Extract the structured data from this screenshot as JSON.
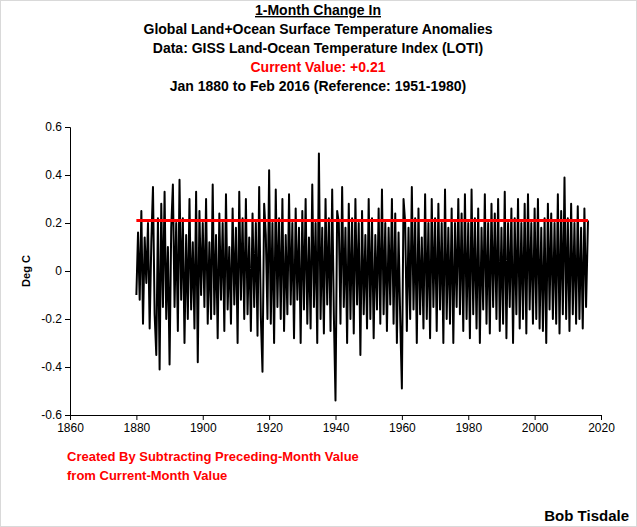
{
  "chart_data": {
    "type": "line",
    "title": "1-Month Change In",
    "subtitle": [
      "Global Land+Ocean Surface Temperature Anomalies",
      "Data: GISS Land-Ocean Temperature Index (LOTI)",
      {
        "text": "Current Value: +0.21",
        "color": "#ff0000"
      },
      "Jan 1880 to Feb 2016 (Reference: 1951-1980)"
    ],
    "y_label": "Deg C",
    "annotations": [
      {
        "text": "Created By Subtracting Preceding-Month Value",
        "color": "#ff0000"
      },
      {
        "text": "from Current-Month Value",
        "color": "#ff0000"
      },
      {
        "text": "Bob Tisdale",
        "color": "#000000"
      }
    ],
    "color": "#000000",
    "reference_line": {
      "value": 0.21,
      "color": "#ff0000"
    },
    "xlim": [
      1860,
      2020
    ],
    "xticks": [
      1860,
      1880,
      1900,
      1920,
      1940,
      1960,
      1980,
      2000,
      2020
    ],
    "ylim": [
      -0.6,
      0.6
    ],
    "yticks": [
      -0.6,
      -0.4,
      -0.2,
      0,
      0.2,
      0.4,
      0.6
    ],
    "grid": false,
    "x": [
      1880,
      1880.5,
      1881,
      1881.5,
      1882,
      1882.5,
      1883,
      1883.5,
      1884,
      1884.5,
      1885,
      1885.5,
      1886,
      1886.5,
      1887,
      1887.5,
      1888,
      1888.5,
      1889,
      1889.5,
      1890,
      1890.5,
      1891,
      1891.5,
      1892,
      1892.5,
      1893,
      1893.5,
      1894,
      1894.5,
      1895,
      1895.5,
      1896,
      1896.5,
      1897,
      1897.5,
      1898,
      1898.5,
      1899,
      1899.5,
      1900,
      1900.5,
      1901,
      1901.5,
      1902,
      1902.5,
      1903,
      1903.5,
      1904,
      1904.5,
      1905,
      1905.5,
      1906,
      1906.5,
      1907,
      1907.5,
      1908,
      1908.5,
      1909,
      1909.5,
      1910,
      1910.5,
      1911,
      1911.5,
      1912,
      1912.5,
      1913,
      1913.5,
      1914,
      1914.5,
      1915,
      1915.5,
      1916,
      1916.5,
      1917,
      1917.5,
      1918,
      1918.5,
      1919,
      1919.5,
      1920,
      1920.5,
      1921,
      1921.5,
      1922,
      1922.5,
      1923,
      1923.5,
      1924,
      1924.5,
      1925,
      1925.5,
      1926,
      1926.5,
      1927,
      1927.5,
      1928,
      1928.5,
      1929,
      1929.5,
      1930,
      1930.5,
      1931,
      1931.5,
      1932,
      1932.5,
      1933,
      1933.5,
      1934,
      1934.5,
      1935,
      1935.5,
      1936,
      1936.5,
      1937,
      1937.5,
      1938,
      1938.5,
      1939,
      1939.5,
      1940,
      1940.5,
      1941,
      1941.5,
      1942,
      1942.5,
      1943,
      1943.5,
      1944,
      1944.5,
      1945,
      1945.5,
      1946,
      1946.5,
      1947,
      1947.5,
      1948,
      1948.5,
      1949,
      1949.5,
      1950,
      1950.5,
      1951,
      1951.5,
      1952,
      1952.5,
      1953,
      1953.5,
      1954,
      1954.5,
      1955,
      1955.5,
      1956,
      1956.5,
      1957,
      1957.5,
      1958,
      1958.5,
      1959,
      1959.5,
      1960,
      1960.5,
      1961,
      1961.5,
      1962,
      1962.5,
      1963,
      1963.5,
      1964,
      1964.5,
      1965,
      1965.5,
      1966,
      1966.5,
      1967,
      1967.5,
      1968,
      1968.5,
      1969,
      1969.5,
      1970,
      1970.5,
      1971,
      1971.5,
      1972,
      1972.5,
      1973,
      1973.5,
      1974,
      1974.5,
      1975,
      1975.5,
      1976,
      1976.5,
      1977,
      1977.5,
      1978,
      1978.5,
      1979,
      1979.5,
      1980,
      1980.5,
      1981,
      1981.5,
      1982,
      1982.5,
      1983,
      1983.5,
      1984,
      1984.5,
      1985,
      1985.5,
      1986,
      1986.5,
      1987,
      1987.5,
      1988,
      1988.5,
      1989,
      1989.5,
      1990,
      1990.5,
      1991,
      1991.5,
      1992,
      1992.5,
      1993,
      1993.5,
      1994,
      1994.5,
      1995,
      1995.5,
      1996,
      1996.5,
      1997,
      1997.5,
      1998,
      1998.5,
      1999,
      1999.5,
      2000,
      2000.5,
      2001,
      2001.5,
      2002,
      2002.5,
      2003,
      2003.5,
      2004,
      2004.5,
      2005,
      2005.5,
      2006,
      2006.5,
      2007,
      2007.5,
      2008,
      2008.5,
      2009,
      2009.5,
      2010,
      2010.5,
      2011,
      2011.5,
      2012,
      2012.5,
      2013,
      2013.5,
      2014,
      2014.5,
      2015,
      2015.5,
      2016.08
    ],
    "values": [
      -0.1,
      0.16,
      -0.12,
      0.25,
      -0.22,
      0.14,
      -0.05,
      0.2,
      -0.24,
      0.12,
      0.35,
      -0.18,
      -0.35,
      0.22,
      -0.41,
      0.28,
      -0.15,
      0.33,
      -0.2,
      0.1,
      -0.39,
      0.18,
      0.36,
      -0.15,
      0.2,
      -0.25,
      0.38,
      -0.12,
      0.22,
      -0.3,
      0.15,
      -0.2,
      0.3,
      -0.16,
      0.12,
      -0.24,
      0.33,
      -0.38,
      0.25,
      -0.1,
      0.2,
      -0.15,
      0.3,
      -0.22,
      0.12,
      -0.2,
      0.36,
      -0.18,
      0.15,
      -0.28,
      0.24,
      -0.12,
      0.2,
      -0.25,
      0.32,
      -0.16,
      0.1,
      -0.22,
      0.26,
      -0.14,
      0.18,
      -0.3,
      0.33,
      -0.12,
      0.22,
      -0.2,
      0.3,
      -0.18,
      0.14,
      -0.25,
      0.24,
      -0.15,
      0.2,
      -0.27,
      0.35,
      -0.19,
      -0.42,
      0.28,
      0.15,
      -0.2,
      0.42,
      -0.22,
      0.2,
      -0.3,
      0.34,
      -0.15,
      0.22,
      -0.2,
      0.3,
      -0.25,
      0.15,
      -0.18,
      0.32,
      -0.14,
      0.2,
      -0.28,
      0.26,
      -0.12,
      0.18,
      -0.3,
      0.25,
      -0.16,
      0.3,
      -0.22,
      0.14,
      -0.24,
      0.36,
      -0.15,
      0.2,
      -0.3,
      0.49,
      -0.2,
      0.18,
      -0.26,
      0.3,
      -0.14,
      0.22,
      -0.25,
      0.34,
      -0.18,
      -0.54,
      0.25,
      0.2,
      -0.22,
      0.35,
      -0.15,
      0.18,
      -0.3,
      0.28,
      -0.2,
      0.22,
      -0.26,
      0.3,
      -0.14,
      0.2,
      -0.35,
      0.25,
      -0.18,
      0.15,
      -0.24,
      0.3,
      -0.2,
      0.22,
      -0.28,
      0.15,
      -0.16,
      0.26,
      -0.22,
      0.34,
      -0.18,
      0.2,
      -0.25,
      0.18,
      -0.14,
      0.3,
      -0.22,
      0.24,
      -0.3,
      0.16,
      -0.2,
      -0.49,
      0.3,
      0.2,
      -0.25,
      0.18,
      -0.2,
      0.35,
      -0.16,
      0.22,
      -0.3,
      0.26,
      -0.18,
      0.14,
      -0.24,
      0.32,
      -0.2,
      0.2,
      -0.28,
      0.3,
      -0.15,
      0.22,
      -0.25,
      0.28,
      -0.16,
      0.2,
      -0.3,
      0.34,
      -0.2,
      0.18,
      -0.22,
      0.26,
      -0.3,
      0.2,
      -0.15,
      0.3,
      -0.18,
      0.24,
      -0.25,
      0.32,
      -0.2,
      0.2,
      -0.28,
      0.34,
      -0.18,
      0.22,
      -0.24,
      0.26,
      -0.3,
      0.18,
      -0.16,
      0.32,
      -0.22,
      0.2,
      -0.26,
      0.28,
      -0.15,
      0.24,
      -0.2,
      0.3,
      -0.25,
      0.18,
      -0.22,
      0.33,
      -0.28,
      0.2,
      -0.15,
      0.26,
      -0.3,
      0.22,
      -0.18,
      0.3,
      -0.24,
      0.2,
      -0.2,
      0.28,
      -0.26,
      0.32,
      -0.16,
      0.2,
      -0.22,
      0.26,
      -0.2,
      0.3,
      -0.24,
      0.18,
      -0.25,
      0.22,
      -0.3,
      0.28,
      -0.16,
      0.24,
      -0.2,
      0.2,
      -0.22,
      0.32,
      -0.26,
      0.25,
      -0.18,
      0.39,
      -0.2,
      0.22,
      -0.25,
      0.28,
      -0.18,
      0.2,
      -0.22,
      0.27,
      -0.2,
      0.18,
      -0.24,
      0.26,
      -0.15,
      0.21
    ]
  }
}
